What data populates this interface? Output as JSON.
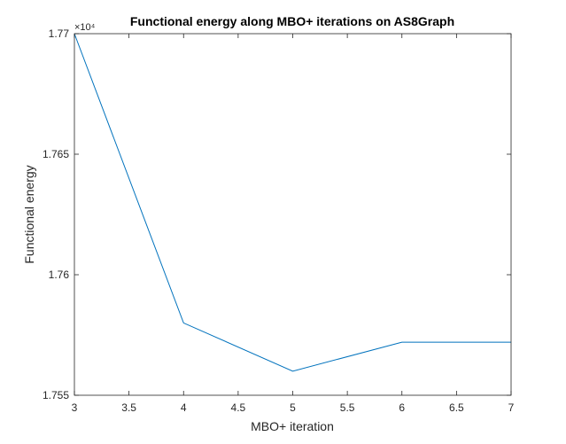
{
  "chart_data": {
    "type": "line",
    "title": "Functional energy along MBO+ iterations on AS8Graph",
    "xlabel": "MBO+ iteration",
    "ylabel": "Functional energy",
    "xlim": [
      3,
      7
    ],
    "ylim": [
      1.755,
      1.77
    ],
    "y_multiplier_label": "×10⁴",
    "x_ticks": [
      "3",
      "3.5",
      "4",
      "4.5",
      "5",
      "5.5",
      "6",
      "6.5",
      "7"
    ],
    "y_ticks": [
      "1.755",
      "1.76",
      "1.765",
      "1.77"
    ],
    "grid": false,
    "series": [
      {
        "x": [
          3,
          4,
          5,
          6,
          7
        ],
        "y": [
          1.77,
          1.758,
          1.756,
          1.7572,
          1.7572
        ],
        "color": "#0072BD"
      }
    ]
  }
}
